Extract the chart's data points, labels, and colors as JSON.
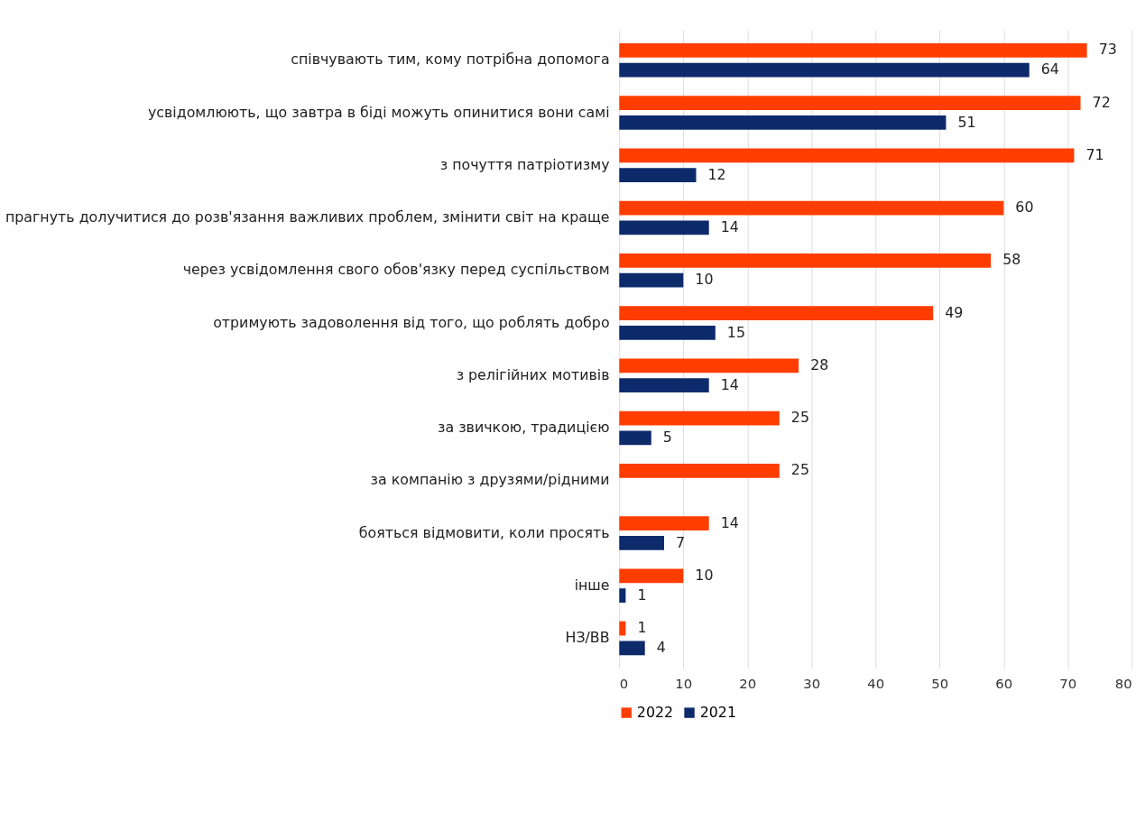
{
  "chart_data": {
    "type": "bar",
    "orientation": "horizontal",
    "categories": [
      "співчувають тим, кому потрібна допомога",
      "усвідомлюють, що завтра в біді можуть опинитися вони самі",
      "з почуття патріотизму",
      "прагнуть долучитися до розв'язання важливих проблем, змінити світ на краще",
      "через усвідомлення свого обов'язку перед суспільством",
      "отримують задоволення від того, що роблять добро",
      "з релігійних мотивів",
      "за звичкою, традицією",
      "за компанію з друзями/рідними",
      "бояться відмовити, коли просять",
      "інше",
      "НЗ/ВВ"
    ],
    "series": [
      {
        "name": "2022",
        "color": "#ff3d00",
        "values": [
          73,
          72,
          71,
          60,
          58,
          49,
          28,
          25,
          25,
          14,
          10,
          1
        ]
      },
      {
        "name": "2021",
        "color": "#0d2a6b",
        "values": [
          64,
          51,
          12,
          14,
          10,
          15,
          14,
          5,
          null,
          7,
          1,
          4
        ]
      }
    ],
    "xlim": [
      0,
      80
    ],
    "xticks": [
      0,
      10,
      20,
      30,
      40,
      50,
      60,
      70,
      80
    ],
    "grid": "x",
    "legend": "bottom",
    "data_labels": true
  }
}
